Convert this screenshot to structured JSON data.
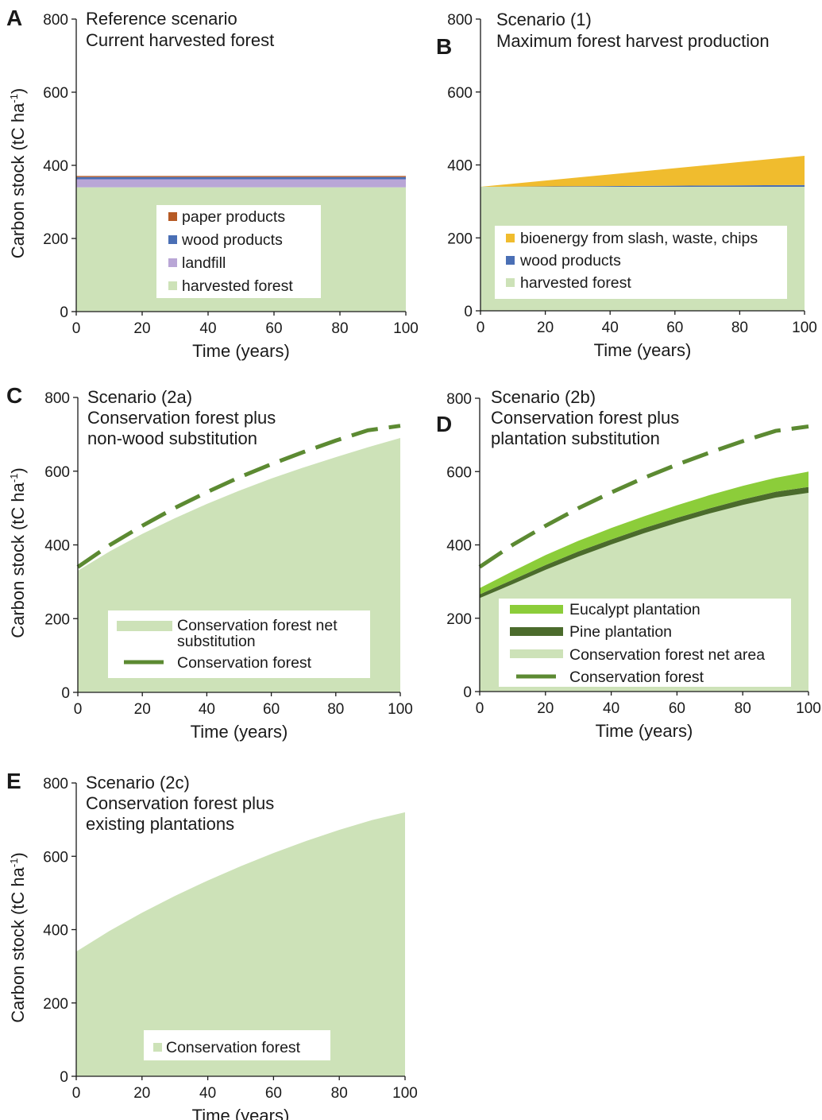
{
  "figure": {
    "colors": {
      "harvested_forest": "#cde2b8",
      "landfill": "#b9a6d6",
      "wood_products": "#4a6fb5",
      "paper_products": "#b65a25",
      "bioenergy": "#f0bc2e",
      "eucalypt": "#8ccd3a",
      "pine": "#4b6b2c",
      "conservation_line": "#5c8a32"
    }
  },
  "chart_data": [
    {
      "id": "A",
      "letter": "A",
      "type": "area",
      "title_lines": [
        "Reference scenario",
        "Current harvested forest"
      ],
      "xlabel": "Time (years)",
      "ylabel": "Carbon stock (tC ha",
      "ylabel_sup": "-1",
      "ylabel_tail": ")",
      "xlim": [
        0,
        100
      ],
      "ylim": [
        0,
        800
      ],
      "xticks": [
        "0",
        "20",
        "40",
        "60",
        "80",
        "100"
      ],
      "yticks": [
        "0",
        "200",
        "400",
        "600",
        "800"
      ],
      "x": [
        0,
        100
      ],
      "series": [
        {
          "name": "harvested forest",
          "values": [
            340,
            340
          ],
          "color": "#cde2b8"
        },
        {
          "name": "landfill",
          "values": [
            22,
            22
          ],
          "color": "#b9a6d6"
        },
        {
          "name": "wood products",
          "values": [
            6,
            6
          ],
          "color": "#4a6fb5"
        },
        {
          "name": "paper products",
          "values": [
            3,
            3
          ],
          "color": "#b65a25"
        }
      ],
      "legend": {
        "placement": "lower-center",
        "items": [
          {
            "label": "paper products",
            "color": "#b65a25"
          },
          {
            "label": "wood products",
            "color": "#4a6fb5"
          },
          {
            "label": "landfill",
            "color": "#b9a6d6"
          },
          {
            "label": "harvested forest",
            "color": "#cde2b8"
          }
        ]
      }
    },
    {
      "id": "B",
      "letter": "B",
      "type": "area",
      "title_lines": [
        "Scenario (1)",
        "Maximum forest harvest production"
      ],
      "xlabel": "Time (years)",
      "ylabel": "",
      "xlim": [
        0,
        100
      ],
      "ylim": [
        0,
        800
      ],
      "xticks": [
        "0",
        "20",
        "40",
        "60",
        "80",
        "100"
      ],
      "yticks": [
        "0",
        "200",
        "400",
        "600",
        "800"
      ],
      "x": [
        0,
        100
      ],
      "series": [
        {
          "name": "harvested forest",
          "values": [
            340,
            340
          ],
          "color": "#cde2b8"
        },
        {
          "name": "wood products",
          "values": [
            0,
            5
          ],
          "color": "#4a6fb5"
        },
        {
          "name": "bioenergy from slash, waste, chips",
          "values": [
            0,
            80
          ],
          "color": "#f0bc2e"
        }
      ],
      "legend": {
        "placement": "lower-center",
        "items": [
          {
            "label": "bioenergy from slash, waste, chips",
            "color": "#f0bc2e"
          },
          {
            "label": "wood products",
            "color": "#4a6fb5"
          },
          {
            "label": "harvested forest",
            "color": "#cde2b8"
          }
        ]
      }
    },
    {
      "id": "C",
      "letter": "C",
      "type": "area",
      "title_lines": [
        "Scenario (2a)",
        "Conservation forest plus",
        "non-wood substitution"
      ],
      "xlabel": "Time (years)",
      "ylabel": "Carbon stock (tC ha",
      "ylabel_sup": "-1",
      "ylabel_tail": ")",
      "xlim": [
        0,
        100
      ],
      "ylim": [
        0,
        800
      ],
      "xticks": [
        "0",
        "20",
        "40",
        "60",
        "80",
        "100"
      ],
      "yticks": [
        "0",
        "200",
        "400",
        "600",
        "800"
      ],
      "x": [
        0,
        10,
        20,
        30,
        40,
        50,
        60,
        70,
        80,
        90,
        100
      ],
      "series": [
        {
          "name": "Conservation forest net substitution",
          "type": "area",
          "values": [
            330,
            383,
            430,
            472,
            511,
            547,
            580,
            610,
            638,
            665,
            690
          ],
          "color": "#cde2b8"
        },
        {
          "name": "Conservation forest",
          "type": "dashed-line",
          "values": [
            340,
            400,
            452,
            500,
            543,
            583,
            619,
            652,
            683,
            711,
            723
          ],
          "color": "#5c8a32"
        }
      ],
      "legend": {
        "placement": "lower-center",
        "items": [
          {
            "label_lines": [
              "Conservation forest net",
              "substitution"
            ],
            "color": "#cde2b8",
            "kind": "area"
          },
          {
            "label_lines": [
              "Conservation forest"
            ],
            "color": "#5c8a32",
            "kind": "dashed-line"
          }
        ]
      }
    },
    {
      "id": "D",
      "letter": "D",
      "type": "area",
      "title_lines": [
        "Scenario (2b)",
        "Conservation forest plus",
        "plantation substitution"
      ],
      "xlabel": "Time (years)",
      "ylabel": "",
      "xlim": [
        0,
        100
      ],
      "ylim": [
        0,
        800
      ],
      "xticks": [
        "0",
        "20",
        "40",
        "60",
        "80",
        "100"
      ],
      "yticks": [
        "0",
        "200",
        "400",
        "600",
        "800"
      ],
      "x": [
        0,
        10,
        20,
        30,
        40,
        50,
        60,
        70,
        80,
        90,
        100
      ],
      "series": [
        {
          "name": "Conservation forest net area",
          "type": "area",
          "values": [
            255,
            300,
            340,
            377,
            410,
            441,
            469,
            495,
            519,
            540,
            557
          ],
          "color": "#cde2b8"
        },
        {
          "name": "Pine plantation",
          "type": "band",
          "lower": [
            255,
            293,
            332,
            368,
            401,
            432,
            460,
            486,
            509,
            529,
            542
          ],
          "upper": [
            265,
            305,
            345,
            382,
            415,
            446,
            474,
            500,
            524,
            545,
            558
          ],
          "color": "#4b6b2c"
        },
        {
          "name": "Eucalypt plantation",
          "type": "band",
          "lower": [
            265,
            305,
            345,
            382,
            415,
            446,
            474,
            500,
            524,
            545,
            558
          ],
          "upper": [
            282,
            328,
            372,
            411,
            446,
            478,
            508,
            536,
            561,
            583,
            600
          ],
          "color": "#8ccd3a"
        },
        {
          "name": "Conservation forest",
          "type": "dashed-line",
          "values": [
            340,
            400,
            452,
            500,
            543,
            583,
            619,
            652,
            683,
            711,
            723
          ],
          "color": "#5c8a32"
        }
      ],
      "legend": {
        "placement": "lower-center",
        "items": [
          {
            "label_lines": [
              "Eucalypt plantation"
            ],
            "color": "#8ccd3a",
            "kind": "thick-line"
          },
          {
            "label_lines": [
              "Pine plantation"
            ],
            "color": "#4b6b2c",
            "kind": "thick-line"
          },
          {
            "label_lines": [
              "Conservation forest net area"
            ],
            "color": "#cde2b8",
            "kind": "area"
          },
          {
            "label_lines": [
              "Conservation forest"
            ],
            "color": "#5c8a32",
            "kind": "dashed-line"
          }
        ]
      }
    },
    {
      "id": "E",
      "letter": "E",
      "type": "area",
      "title_lines": [
        "Scenario (2c)",
        "Conservation forest plus",
        "existing plantations"
      ],
      "xlabel": "Time (years)",
      "ylabel": "Carbon stock (tC ha",
      "ylabel_sup": "-1",
      "ylabel_tail": ")",
      "xlim": [
        0,
        100
      ],
      "ylim": [
        0,
        800
      ],
      "xticks": [
        "0",
        "20",
        "40",
        "60",
        "80",
        "100"
      ],
      "yticks": [
        "0",
        "200",
        "400",
        "600",
        "800"
      ],
      "x": [
        0,
        10,
        20,
        30,
        40,
        50,
        60,
        70,
        80,
        90,
        100
      ],
      "series": [
        {
          "name": "Conservation forest",
          "type": "area",
          "values": [
            340,
            396,
            446,
            492,
            534,
            573,
            609,
            642,
            672,
            699,
            720
          ],
          "color": "#cde2b8"
        }
      ],
      "legend": {
        "placement": "lower-center",
        "items": [
          {
            "label_lines": [
              "Conservation forest"
            ],
            "color": "#cde2b8",
            "kind": "square"
          }
        ]
      }
    }
  ]
}
